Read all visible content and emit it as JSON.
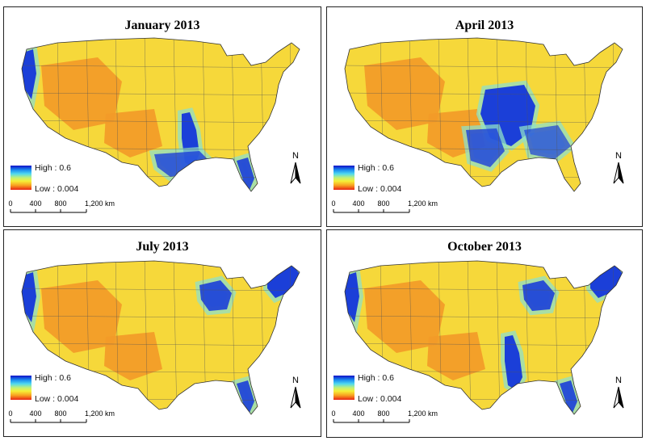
{
  "panels": [
    {
      "title": "January 2013",
      "legend_high": "High : 0.6",
      "legend_low": "Low : 0.004",
      "north": "N",
      "scale": [
        "0",
        "400",
        "800",
        "1,200 km"
      ],
      "wet_regions": [
        "mississippi-valley",
        "gulf-coast",
        "pacific-northwest-coast",
        "florida"
      ]
    },
    {
      "title": "April 2013",
      "legend_high": "High : 0.6",
      "legend_low": "Low : 0.004",
      "north": "N",
      "scale": [
        "0",
        "400",
        "800",
        "1,200 km"
      ],
      "wet_regions": [
        "central-midwest",
        "southern-plains",
        "southeast"
      ]
    },
    {
      "title": "July 2013",
      "legend_high": "High : 0.6",
      "legend_low": "Low : 0.004",
      "north": "N",
      "scale": [
        "0",
        "400",
        "800",
        "1,200 km"
      ],
      "wet_regions": [
        "pacific-northwest-coast",
        "great-lakes",
        "new-england",
        "florida"
      ]
    },
    {
      "title": "October 2013",
      "legend_high": "High : 0.6",
      "legend_low": "Low : 0.004",
      "north": "N",
      "scale": [
        "0",
        "400",
        "800",
        "1,200 km"
      ],
      "wet_regions": [
        "pacific-northwest-coast",
        "great-lakes",
        "new-england",
        "mississippi-valley",
        "florida"
      ]
    }
  ],
  "colors": {
    "high": "#1010c8",
    "mid": "#f6f038",
    "low": "#e82414",
    "border": "#222222"
  }
}
